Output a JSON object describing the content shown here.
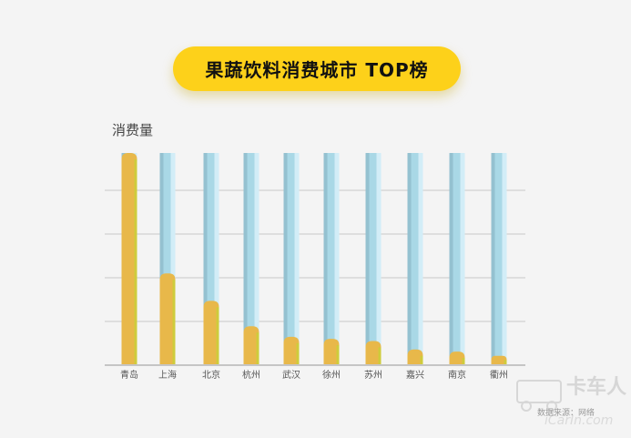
{
  "title": "果蔬饮料消费城市 TOP榜",
  "source_note": "数据来源：网络",
  "watermark_text": "卡车人 iCarIn.com",
  "colors": {
    "pill": "#fdd11a",
    "bar_track": "#a9d8e6",
    "bar_fill": "#e8b84a",
    "grid": "#c8c8c8",
    "axis": "#b5b5b5"
  },
  "chart_data": {
    "type": "bar",
    "ylabel": "消费量",
    "xlabel": "",
    "categories": [
      "青岛",
      "上海",
      "北京",
      "杭州",
      "武汉",
      "徐州",
      "苏州",
      "嘉兴",
      "南京",
      "衢州"
    ],
    "values": [
      100,
      43,
      30,
      18,
      13,
      12,
      11,
      7,
      6,
      4
    ],
    "ylim": [
      0,
      100
    ],
    "grid": true,
    "tick_labels_visible": false
  }
}
